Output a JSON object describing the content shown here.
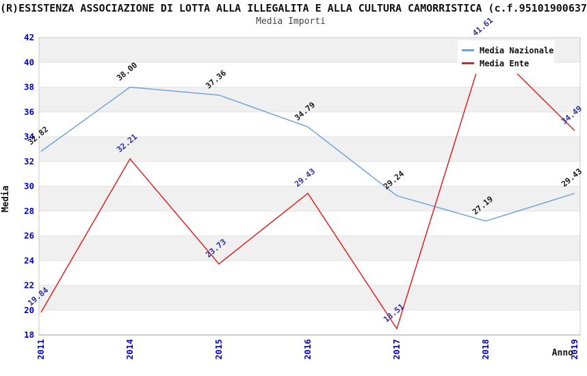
{
  "chart_data": {
    "type": "line",
    "title": "(R)ESISTENZA ASSOCIAZIONE DI LOTTA ALLA ILLEGALITA E ALLA CULTURA CAMORRISTICA (c.f.95101900637",
    "subtitle": "Media Importi",
    "xlabel": "Anno",
    "ylabel": "Media",
    "categories": [
      "2011",
      "2014",
      "2015",
      "2016",
      "2017",
      "2018",
      "2019"
    ],
    "series": [
      {
        "name": "Media Nazionale",
        "color": "#6fa3da",
        "label_color": "#1c1c1c",
        "values": [
          32.82,
          38.0,
          37.36,
          34.79,
          29.24,
          27.19,
          29.43
        ]
      },
      {
        "name": "Media Ente",
        "color": "#e02020",
        "label_color": "#32329e",
        "values": [
          19.84,
          32.21,
          23.73,
          29.43,
          18.51,
          41.61,
          34.49
        ]
      }
    ],
    "ylim": [
      18,
      42
    ],
    "ytick_step": 2,
    "y_ticks": [
      18,
      20,
      22,
      24,
      26,
      28,
      30,
      32,
      34,
      36,
      38,
      40,
      42
    ],
    "grid": "horizontal-alternating-bands",
    "legend_position": "top-right",
    "colors": {
      "tick_label": "#0000cc",
      "band_gray": "#f0f0f0",
      "band_white": "#ffffff",
      "band_line": "#e3e3e3",
      "plot_border": "#c9c9c9",
      "x_axis_line": "#999999"
    }
  }
}
